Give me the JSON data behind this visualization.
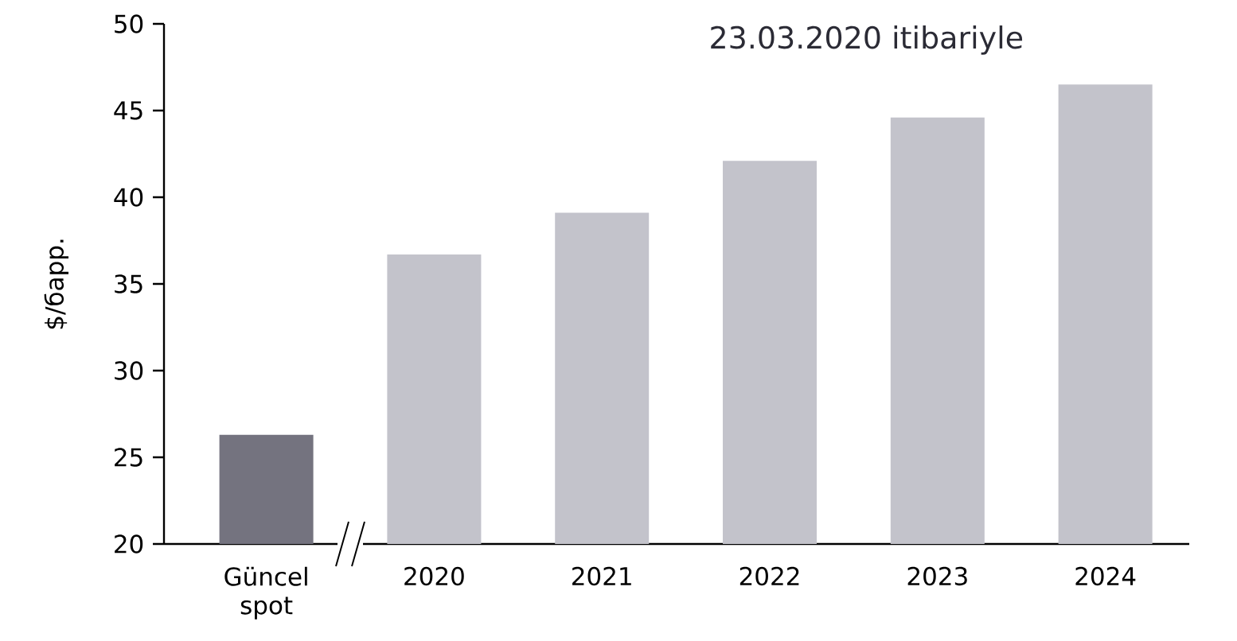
{
  "chart_data": {
    "type": "bar",
    "title": "23.03.2020 itibariyle",
    "ylabel": "$/барр.",
    "categories": [
      "Güncel spot",
      "2020",
      "2021",
      "2022",
      "2023",
      "2024"
    ],
    "values": [
      26.3,
      36.7,
      39.1,
      42.1,
      44.6,
      46.5
    ],
    "colors": [
      "#74737f",
      "#c3c3cb",
      "#c3c3cb",
      "#c3c3cb",
      "#c3c3cb",
      "#c3c3cb"
    ],
    "ylim": [
      20,
      50
    ],
    "yticks": [
      20,
      25,
      30,
      35,
      40,
      45,
      50
    ]
  }
}
